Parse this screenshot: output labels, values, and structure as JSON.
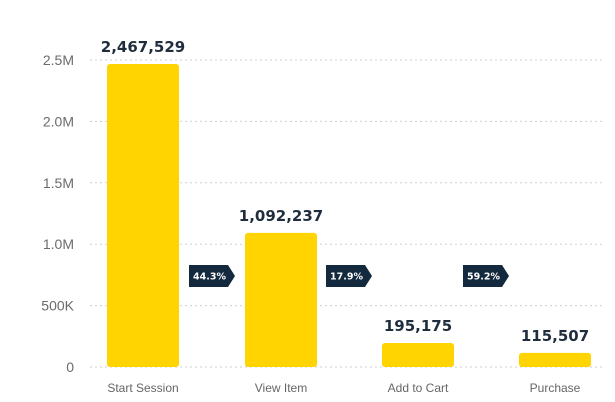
{
  "chart_data": {
    "type": "bar",
    "categories": [
      "Start Session",
      "View Item",
      "Add to Cart",
      "Purchase"
    ],
    "values": [
      2467529,
      1092237,
      195175,
      115507
    ],
    "value_labels": [
      "2,467,529",
      "1,092,237",
      "195,175",
      "115,507"
    ],
    "conversion_rates": [
      "44.3%",
      "17.9%",
      "59.2%"
    ],
    "title": "",
    "xlabel": "",
    "ylabel": "",
    "ylim": [
      0,
      2500000
    ],
    "yticks": [
      0,
      500000,
      1000000,
      1500000,
      2000000,
      2500000
    ],
    "ytick_labels": [
      "0",
      "500K",
      "1.0M",
      "1.5M",
      "2.0M",
      "2.5M"
    ],
    "grid": true,
    "colors": {
      "bar": "#FFD400",
      "conversion_badge": "#13293d",
      "grid": "#cfcfcf"
    }
  }
}
